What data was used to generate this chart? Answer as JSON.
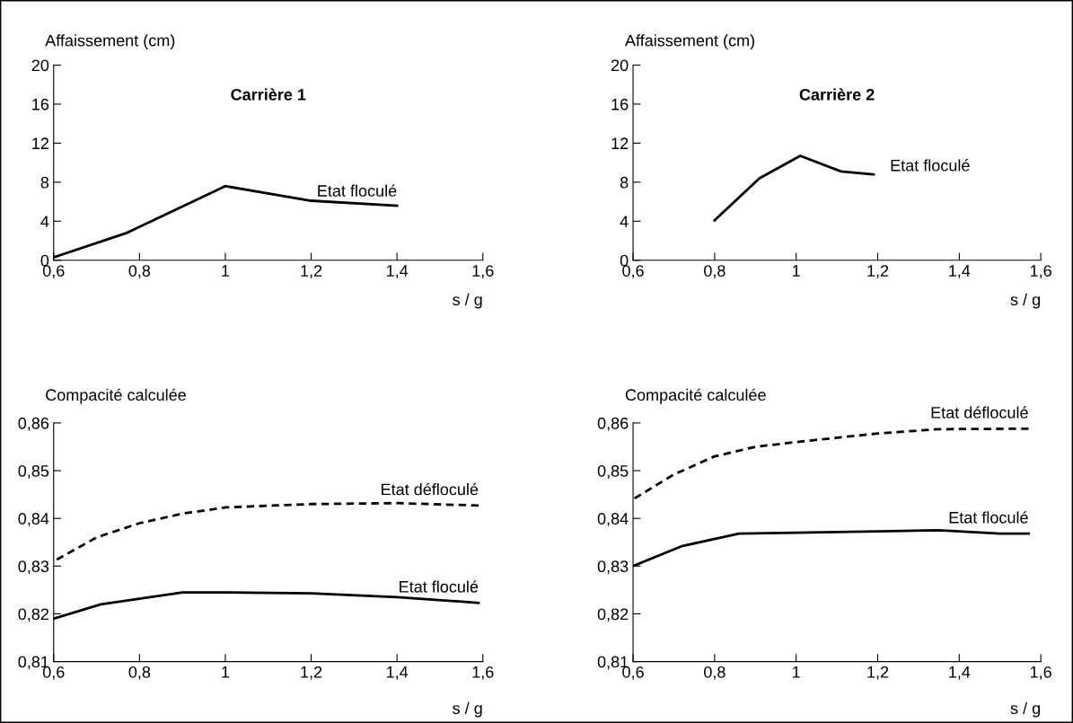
{
  "chart_data": [
    {
      "type": "line",
      "title": "Carrière 1",
      "xlabel": "s / g",
      "ylabel": "Affaissement (cm)",
      "xlim": [
        0.6,
        1.6
      ],
      "ylim": [
        0,
        20
      ],
      "xticks": [
        {
          "value": 0.6,
          "label": "0,6"
        },
        {
          "value": 0.8,
          "label": "0,8"
        },
        1,
        {
          "value": 1.2,
          "label": "1,2"
        },
        {
          "value": 1.4,
          "label": "1,4"
        },
        {
          "value": 1.6,
          "label": "1,6"
        }
      ],
      "yticks": [
        0,
        4,
        8,
        12,
        16,
        20
      ],
      "grid": false,
      "legend": false,
      "series": [
        {
          "name": "Etat floculé",
          "color": "#000000",
          "line_style": "solid",
          "x": [
            0.6,
            0.77,
            1.0,
            1.2,
            1.4
          ],
          "values": [
            0.3,
            2.8,
            7.6,
            6.1,
            5.6
          ]
        }
      ]
    },
    {
      "type": "line",
      "title": "Carrière 2",
      "xlabel": "s / g",
      "ylabel": "Affaissement (cm)",
      "xlim": [
        0.6,
        1.6
      ],
      "ylim": [
        0,
        20
      ],
      "xticks": [
        {
          "value": 0.6,
          "label": "0,6"
        },
        {
          "value": 0.8,
          "label": "0,8"
        },
        1,
        {
          "value": 1.2,
          "label": "1,2"
        },
        {
          "value": 1.4,
          "label": "1,4"
        },
        {
          "value": 1.6,
          "label": "1,6"
        }
      ],
      "yticks": [
        0,
        4,
        8,
        12,
        16,
        20
      ],
      "grid": false,
      "legend": false,
      "series": [
        {
          "name": "Etat floculé",
          "color": "#000000",
          "line_style": "solid",
          "x": [
            0.8,
            0.91,
            1.01,
            1.11,
            1.19
          ],
          "values": [
            4.1,
            8.4,
            10.7,
            9.1,
            8.8
          ]
        }
      ]
    },
    {
      "type": "line",
      "xlabel": "s / g",
      "ylabel": "Compacité calculée",
      "xlim": [
        0.6,
        1.6
      ],
      "ylim": [
        0.81,
        0.86
      ],
      "xticks": [
        {
          "value": 0.6,
          "label": "0,6"
        },
        {
          "value": 0.8,
          "label": "0,8"
        },
        1,
        {
          "value": 1.2,
          "label": "1,2"
        },
        {
          "value": 1.4,
          "label": "1,4"
        },
        {
          "value": 1.6,
          "label": "1,6"
        }
      ],
      "yticks": [
        {
          "value": 0.81,
          "label": "0,81"
        },
        {
          "value": 0.82,
          "label": "0,82"
        },
        {
          "value": 0.83,
          "label": "0,83"
        },
        {
          "value": 0.84,
          "label": "0,84"
        },
        {
          "value": 0.85,
          "label": "0,85"
        },
        {
          "value": 0.86,
          "label": "0,86"
        }
      ],
      "grid": false,
      "legend": false,
      "series": [
        {
          "name": "Etat défloculé",
          "color": "#000000",
          "line_style": "dashed",
          "x": [
            0.6,
            0.7,
            0.8,
            0.9,
            1.0,
            1.2,
            1.4,
            1.59
          ],
          "values": [
            0.831,
            0.836,
            0.839,
            0.841,
            0.8423,
            0.843,
            0.8432,
            0.8427
          ]
        },
        {
          "name": "Etat floculé",
          "color": "#000000",
          "line_style": "solid",
          "x": [
            0.6,
            0.71,
            0.9,
            1.0,
            1.2,
            1.4,
            1.59
          ],
          "values": [
            0.819,
            0.822,
            0.8245,
            0.8245,
            0.8243,
            0.8235,
            0.8223
          ]
        }
      ]
    },
    {
      "type": "line",
      "xlabel": "s / g",
      "ylabel": "Compacité calculée",
      "xlim": [
        0.6,
        1.6
      ],
      "ylim": [
        0.81,
        0.86
      ],
      "xticks": [
        {
          "value": 0.6,
          "label": "0,6"
        },
        {
          "value": 0.8,
          "label": "0,8"
        },
        1,
        {
          "value": 1.2,
          "label": "1,2"
        },
        {
          "value": 1.4,
          "label": "1,4"
        },
        {
          "value": 1.6,
          "label": "1,6"
        }
      ],
      "yticks": [
        {
          "value": 0.81,
          "label": "0,81"
        },
        {
          "value": 0.82,
          "label": "0,82"
        },
        {
          "value": 0.83,
          "label": "0,83"
        },
        {
          "value": 0.84,
          "label": "0,84"
        },
        {
          "value": 0.85,
          "label": "0,85"
        },
        {
          "value": 0.86,
          "label": "0,86"
        }
      ],
      "grid": false,
      "legend": false,
      "series": [
        {
          "name": "Etat défloculé",
          "color": "#000000",
          "line_style": "dashed",
          "x": [
            0.6,
            0.7,
            0.8,
            0.9,
            1.0,
            1.2,
            1.35,
            1.57
          ],
          "values": [
            0.844,
            0.8492,
            0.853,
            0.855,
            0.856,
            0.8578,
            0.8587,
            0.8588
          ]
        },
        {
          "name": "Etat floculé",
          "color": "#000000",
          "line_style": "solid",
          "x": [
            0.6,
            0.72,
            0.86,
            1.0,
            1.2,
            1.35,
            1.5,
            1.57
          ],
          "values": [
            0.83,
            0.8342,
            0.8368,
            0.837,
            0.8373,
            0.8375,
            0.8368,
            0.8368
          ]
        }
      ]
    }
  ]
}
